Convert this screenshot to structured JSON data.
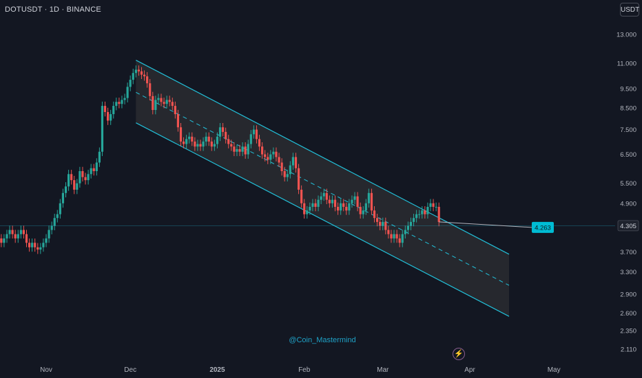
{
  "header": {
    "symbol_line": "DOTUSDT · 1D · BINANCE"
  },
  "toolbar": {
    "currency_label": "USDT"
  },
  "watermark": "@Coin_Mastermind",
  "icons": {
    "alert": "flash-icon"
  },
  "colors": {
    "background": "#131722",
    "up": "#26a69a",
    "down": "#ef5350",
    "channel": "#22c0d9",
    "channel_fill": "#2a2b30",
    "label_box": "#00bcd4"
  },
  "chart_data": {
    "type": "candlestick",
    "title": "DOTUSDT · 1D · BINANCE",
    "y_scale": "log",
    "ylim": [
      2.0,
      15.0
    ],
    "y_ticks": [
      "13.000",
      "11.000",
      "9.500",
      "8.500",
      "7.500",
      "6.500",
      "5.500",
      "4.900",
      "3.700",
      "3.300",
      "2.900",
      "2.600",
      "2.350",
      "2.110"
    ],
    "x_ticks": [
      {
        "label": "Nov",
        "date": "2024-11-01"
      },
      {
        "label": "Dec",
        "date": "2024-12-01"
      },
      {
        "label": "2025",
        "date": "2025-01-01"
      },
      {
        "label": "Feb",
        "date": "2025-02-01"
      },
      {
        "label": "Mar",
        "date": "2025-03-01"
      },
      {
        "label": "Apr",
        "date": "2025-04-01"
      },
      {
        "label": "May",
        "date": "2025-05-01"
      }
    ],
    "current_price": "4.305",
    "projection_label": "4.263",
    "channel": {
      "upper": [
        [
          "2024-12-03",
          11.2
        ],
        [
          "2025-04-15",
          3.65
        ]
      ],
      "middle": [
        [
          "2024-12-03",
          9.3
        ],
        [
          "2025-04-15",
          3.05
        ]
      ],
      "lower": [
        [
          "2024-12-03",
          7.8
        ],
        [
          "2025-04-15",
          2.55
        ]
      ]
    },
    "close_series": {
      "start": "2024-10-01",
      "closes": [
        4.3,
        4.2,
        4.4,
        4.2,
        4.1,
        4.3,
        4.5,
        4.3,
        4.2,
        4.1,
        4.2,
        4.1,
        4.3,
        4.2,
        4.0,
        3.9,
        4.0,
        4.1,
        4.2,
        4.1,
        4.0,
        4.1,
        4.2,
        4.1,
        3.9,
        3.8,
        3.9,
        3.8,
        3.75,
        3.8,
        3.9,
        4.0,
        4.2,
        4.3,
        4.5,
        4.6,
        4.9,
        5.2,
        5.4,
        5.8,
        5.6,
        5.3,
        5.5,
        5.9,
        5.7,
        5.6,
        5.8,
        6.0,
        5.9,
        6.2,
        6.6,
        8.6,
        8.3,
        7.9,
        8.2,
        8.6,
        8.8,
        8.7,
        8.9,
        9.0,
        9.6,
        10.0,
        10.4,
        10.6,
        10.5,
        10.3,
        10.2,
        9.8,
        9.1,
        8.4,
        8.9,
        9.0,
        8.8,
        8.7,
        8.9,
        8.8,
        8.6,
        8.2,
        7.6,
        7.0,
        6.9,
        7.1,
        7.2,
        7.0,
        6.8,
        6.9,
        6.8,
        7.0,
        7.2,
        7.0,
        6.8,
        6.9,
        7.2,
        7.6,
        7.4,
        7.1,
        6.9,
        6.8,
        6.6,
        6.7,
        6.6,
        6.8,
        6.5,
        6.9,
        7.3,
        7.5,
        7.1,
        6.8,
        6.5,
        6.4,
        6.3,
        6.5,
        6.6,
        6.4,
        6.2,
        5.9,
        5.7,
        5.8,
        6.1,
        6.4,
        6.0,
        5.3,
        4.9,
        4.6,
        4.7,
        4.8,
        4.9,
        4.8,
        5.0,
        5.1,
        5.2,
        5.0,
        4.9,
        5.0,
        4.8,
        4.7,
        4.9,
        4.8,
        4.7,
        4.9,
        5.0,
        5.1,
        4.8,
        4.6,
        4.7,
        4.9,
        5.2,
        4.7,
        4.5,
        4.4,
        4.3,
        4.4,
        4.2,
        4.1,
        4.0,
        4.1,
        4.0,
        3.9,
        4.1,
        4.2,
        4.3,
        4.4,
        4.5,
        4.6,
        4.6,
        4.7,
        4.6,
        4.8,
        4.9,
        4.8,
        4.8,
        4.4
      ]
    }
  }
}
